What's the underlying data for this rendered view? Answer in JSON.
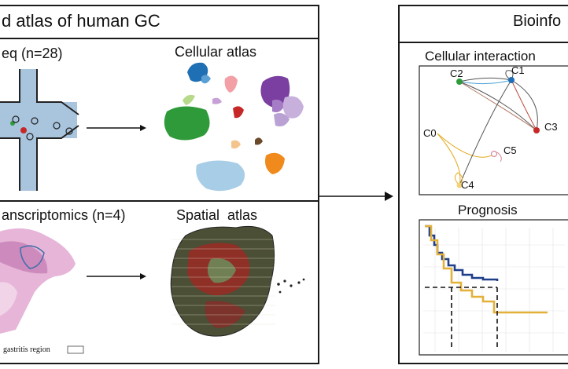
{
  "left_panel": {
    "title": "d atlas of human GC",
    "scrna_label": "eq (n=28)",
    "cellular_atlas_label": "Cellular atlas",
    "spatial_label": "anscriptomics (n=4)",
    "spatial_atlas_label": "Spatial  atlas",
    "tissue_caption": "gastritis region"
  },
  "right_panel": {
    "title": "Bioinfo",
    "interaction_label": "Cellular interaction",
    "nodes": [
      "C1",
      "C2",
      "C3",
      "C4",
      "C5",
      "C0"
    ],
    "prognosis_label": "Prognosis"
  },
  "colors": {
    "cluster_blue": "#1f6fb5",
    "cluster_green": "#2e9a3a",
    "cluster_purple": "#7a3fa0",
    "cluster_orange": "#f08a1c",
    "curve_navy": "#1f3f8a",
    "curve_gold": "#e3b13a",
    "tissue_pink": "#d99ac8"
  }
}
